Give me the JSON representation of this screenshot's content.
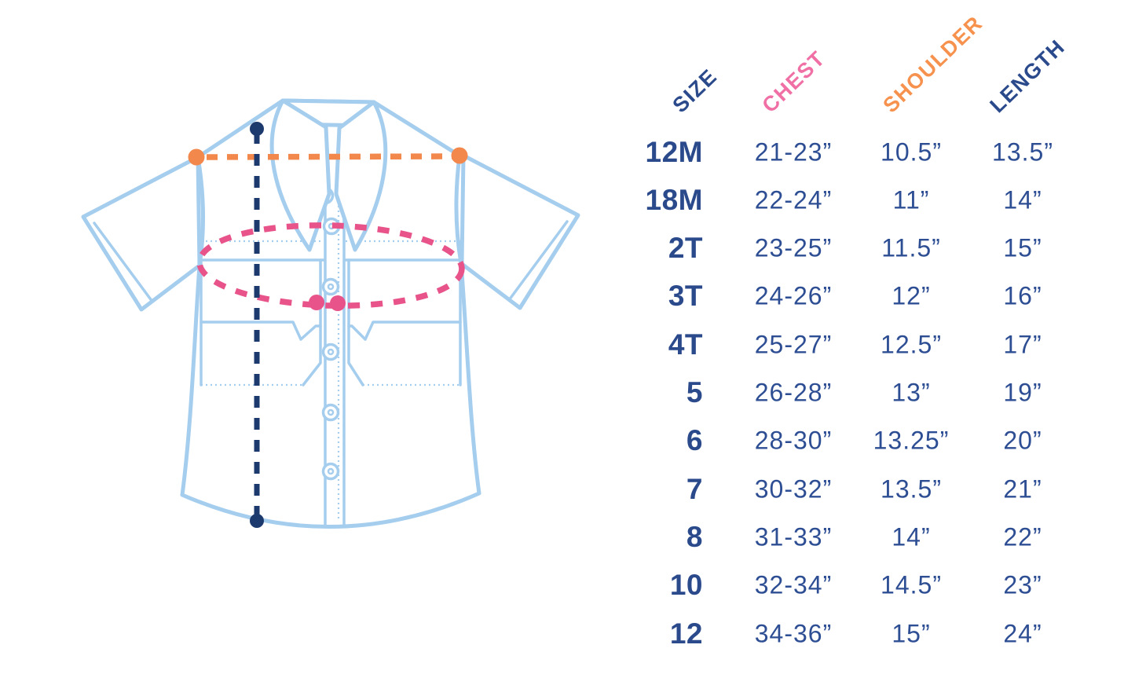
{
  "theme": {
    "shirt_outline": "#a5cdee",
    "length_line": "#1d3a6e",
    "shoulder_line": "#f2884b",
    "chest_line": "#e8538a",
    "size_text": "#2b4a8c",
    "value_text": "#2e4e94"
  },
  "diagram": {
    "shirt_icon": "short-sleeve-button-up-shirt",
    "length_marker": "vertical-dashed-line-with-end-dots",
    "shoulder_marker": "horizontal-dashed-line-with-end-dots",
    "chest_marker": "dashed-ellipse-with-two-dots"
  },
  "table": {
    "columns": [
      {
        "key": "size",
        "label": "SIZE",
        "color": "#2b4a8c"
      },
      {
        "key": "chest",
        "label": "CHEST",
        "color": "#f06fa4"
      },
      {
        "key": "shoulder",
        "label": "SHOULDER",
        "color": "#f6924e"
      },
      {
        "key": "length",
        "label": "LENGTH",
        "color": "#2b4a8c"
      }
    ],
    "rows": [
      {
        "size": "12M",
        "chest": "21-23”",
        "shoulder": "10.5”",
        "length": "13.5”"
      },
      {
        "size": "18M",
        "chest": "22-24”",
        "shoulder": "11”",
        "length": "14”"
      },
      {
        "size": "2T",
        "chest": "23-25”",
        "shoulder": "11.5”",
        "length": "15”"
      },
      {
        "size": "3T",
        "chest": "24-26”",
        "shoulder": "12”",
        "length": "16”"
      },
      {
        "size": "4T",
        "chest": "25-27”",
        "shoulder": "12.5”",
        "length": "17”"
      },
      {
        "size": "5",
        "chest": "26-28”",
        "shoulder": "13”",
        "length": "19”"
      },
      {
        "size": "6",
        "chest": "28-30”",
        "shoulder": "13.25”",
        "length": "20”"
      },
      {
        "size": "7",
        "chest": "30-32”",
        "shoulder": "13.5”",
        "length": "21”"
      },
      {
        "size": "8",
        "chest": "31-33”",
        "shoulder": "14”",
        "length": "22”"
      },
      {
        "size": "10",
        "chest": "32-34”",
        "shoulder": "14.5”",
        "length": "23”"
      },
      {
        "size": "12",
        "chest": "34-36”",
        "shoulder": "15”",
        "length": "24”"
      }
    ]
  }
}
